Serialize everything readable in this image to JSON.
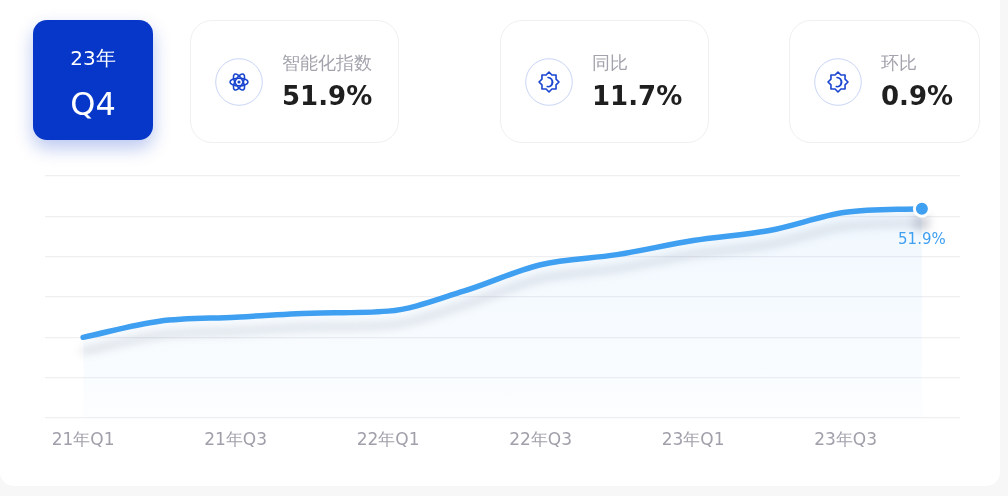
{
  "chart_data": [
    {
      "type": "other",
      "annotations": [
        "23年",
        "Q4",
        "智能化指数",
        "51.9%",
        "同比",
        "11.7%",
        "环比",
        "0.9%"
      ]
    },
    {
      "type": "area",
      "categories": [
        "21年Q1",
        null,
        "21年Q3",
        null,
        "22年Q1",
        null,
        "22年Q3",
        null,
        "23年Q1",
        null,
        "23年Q3",
        null
      ],
      "values": [
        20,
        24,
        25,
        26,
        26.5,
        31.5,
        38,
        40.5,
        44,
        46.5,
        51,
        51.9
      ],
      "value_labels": [
        null,
        null,
        null,
        null,
        null,
        null,
        null,
        null,
        null,
        null,
        null,
        "51.9%"
      ],
      "color": "#3f9ff1",
      "ylim": [
        0,
        60
      ],
      "yticks": [
        {
          "value": 0,
          "label": null
        },
        {
          "value": 10,
          "label": null
        },
        {
          "value": 20,
          "label": null
        },
        {
          "value": 30,
          "label": null
        },
        {
          "value": 40,
          "label": null
        },
        {
          "value": 50,
          "label": null
        },
        {
          "value": 60,
          "label": null
        }
      ],
      "grid": "y",
      "tick_labels": "x",
      "legend": false
    }
  ]
}
